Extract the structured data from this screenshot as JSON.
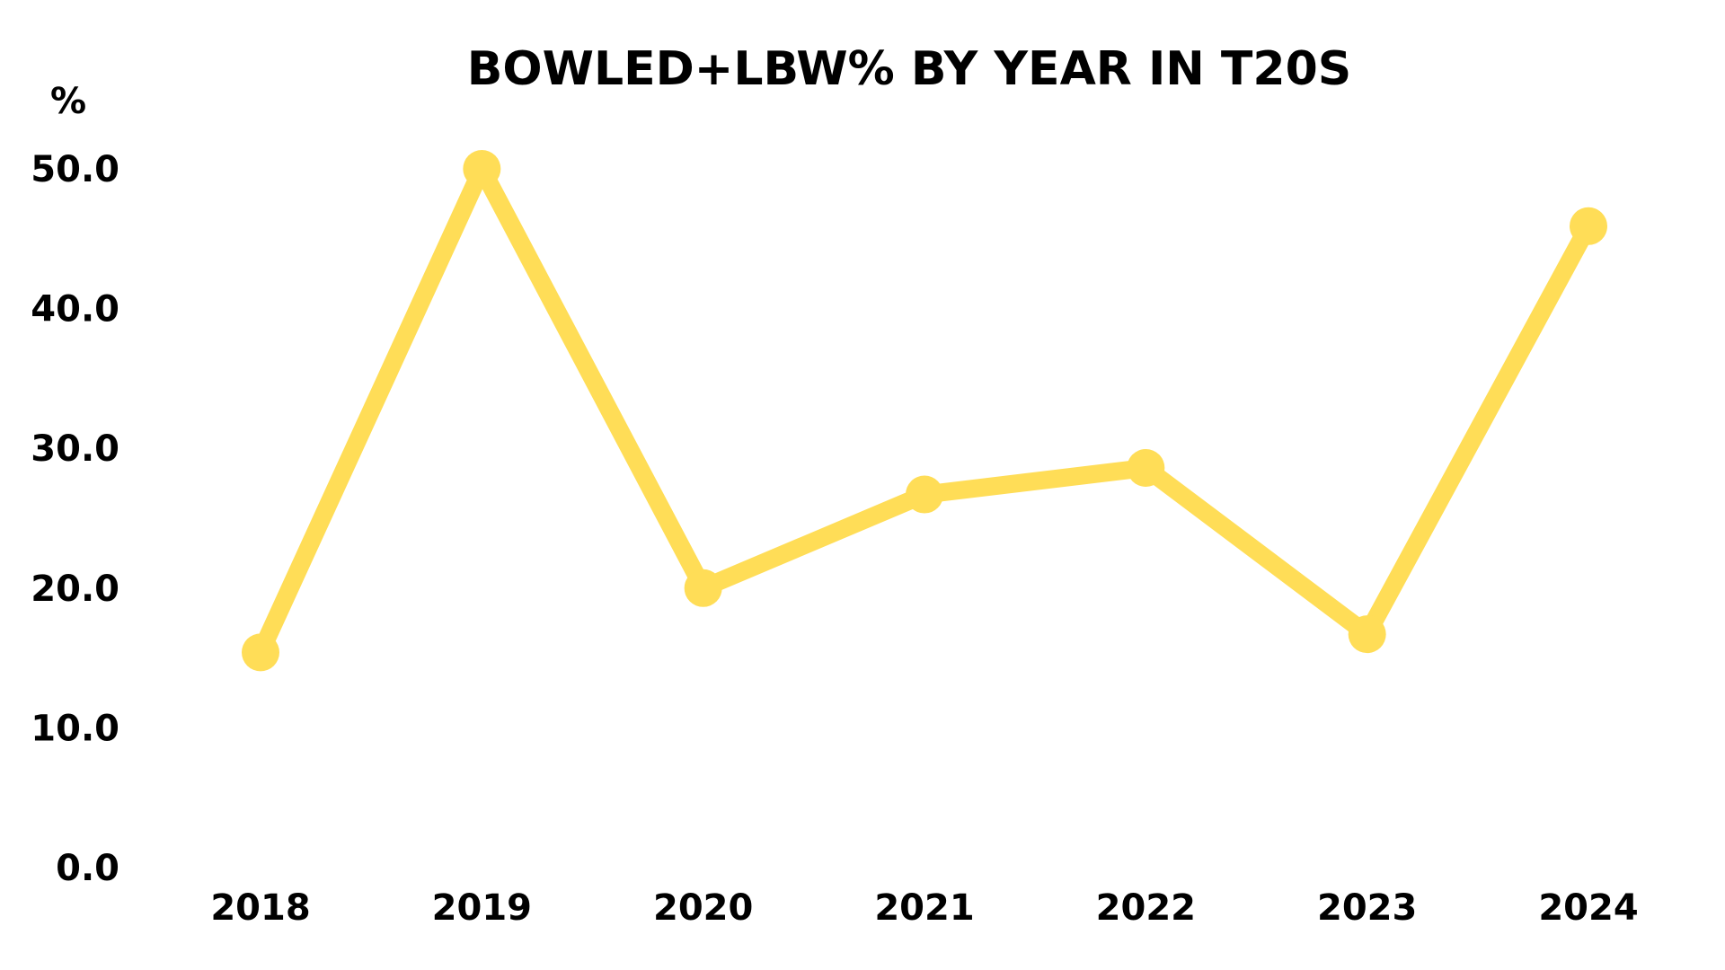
{
  "chart_data": {
    "type": "line",
    "title": "BOWLED+LBW% BY YEAR IN T20S",
    "ylabel": "%",
    "xlabel": "",
    "categories": [
      "2018",
      "2019",
      "2020",
      "2021",
      "2022",
      "2023",
      "2024"
    ],
    "series": [
      {
        "values": [
          15.4,
          50.0,
          20.0,
          26.7,
          28.6,
          16.7,
          45.9
        ]
      }
    ],
    "ylim": [
      0,
      50
    ],
    "yticks": [
      "0.0",
      "10.0",
      "20.0",
      "30.0",
      "40.0",
      "50.0"
    ],
    "grid": false,
    "legend": "none",
    "colors": {
      "line": "#FFDD57",
      "text": "#000000",
      "background": "#ffffff"
    }
  }
}
